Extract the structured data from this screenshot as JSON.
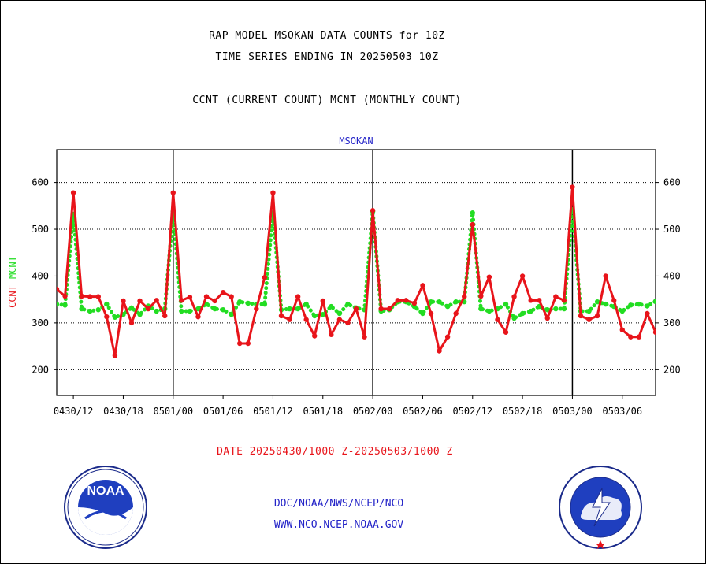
{
  "page": {
    "title_line1": "RAP MODEL MSOKAN DATA COUNTS for 10Z",
    "title_line2": "TIME SERIES ENDING IN 20250503 10Z",
    "subtitle": "CCNT (CURRENT COUNT) MCNT (MONTHLY COUNT)",
    "date_range": "DATE 20250430/1000 Z-20250503/1000 Z",
    "footer_link1": "DOC/NOAA/NWS/NCEP/NCO",
    "footer_link2": "WWW.NCO.NCEP.NOAA.GOV",
    "logo_left": "NOAA",
    "logo_right": "NATIONAL WEATHER SERVICE"
  },
  "colors": {
    "ccnt": "#e8141a",
    "mcnt": "#22dd22",
    "plot_label": "#2424c8",
    "grid": "#000000"
  },
  "chart_data": {
    "type": "line",
    "title": "MSOKAN",
    "ylabel_series": [
      "CCNT",
      "MCNT"
    ],
    "ylim": [
      145,
      670
    ],
    "yticks": [
      200,
      300,
      400,
      500,
      600
    ],
    "xlim": [
      0,
      72
    ],
    "x_tick_labels": [
      "0430/12",
      "0430/18",
      "0501/00",
      "0501/06",
      "0501/12",
      "0501/18",
      "0502/00",
      "0502/06",
      "0502/12",
      "0502/18",
      "0503/00",
      "0503/06"
    ],
    "grid": "horizontal dotted; vertical solid at day boundaries",
    "x_unit": "hours after 0430/10Z",
    "series": [
      {
        "name": "CCNT",
        "values": [
          372,
          357,
          578,
          357,
          356,
          356,
          313,
          230,
          347,
          300,
          347,
          330,
          348,
          315,
          578,
          348,
          355,
          313,
          356,
          347,
          365,
          356,
          256,
          256,
          330,
          397,
          578,
          315,
          307,
          356,
          307,
          272,
          347,
          275,
          307,
          300,
          330,
          270,
          540,
          330,
          330,
          348,
          348,
          342,
          380,
          320,
          240,
          270,
          320,
          356,
          510,
          357,
          398,
          307,
          280,
          356,
          400,
          348,
          348,
          310,
          356,
          348,
          590,
          315,
          307,
          315,
          400,
          348,
          285,
          270,
          270,
          320,
          280
        ]
      },
      {
        "name": "MCNT",
        "values": [
          340,
          338,
          532,
          330,
          325,
          328,
          340,
          312,
          318,
          332,
          318,
          336,
          325,
          330,
          538,
          325,
          325,
          330,
          340,
          330,
          328,
          318,
          345,
          342,
          340,
          340,
          535,
          328,
          330,
          330,
          340,
          315,
          318,
          335,
          320,
          340,
          332,
          328,
          538,
          325,
          328,
          345,
          345,
          335,
          320,
          345,
          345,
          335,
          345,
          345,
          535,
          330,
          325,
          330,
          340,
          310,
          320,
          325,
          335,
          328,
          330,
          330,
          542,
          325,
          325,
          345,
          340,
          335,
          325,
          338,
          340,
          336,
          346
        ]
      }
    ]
  }
}
